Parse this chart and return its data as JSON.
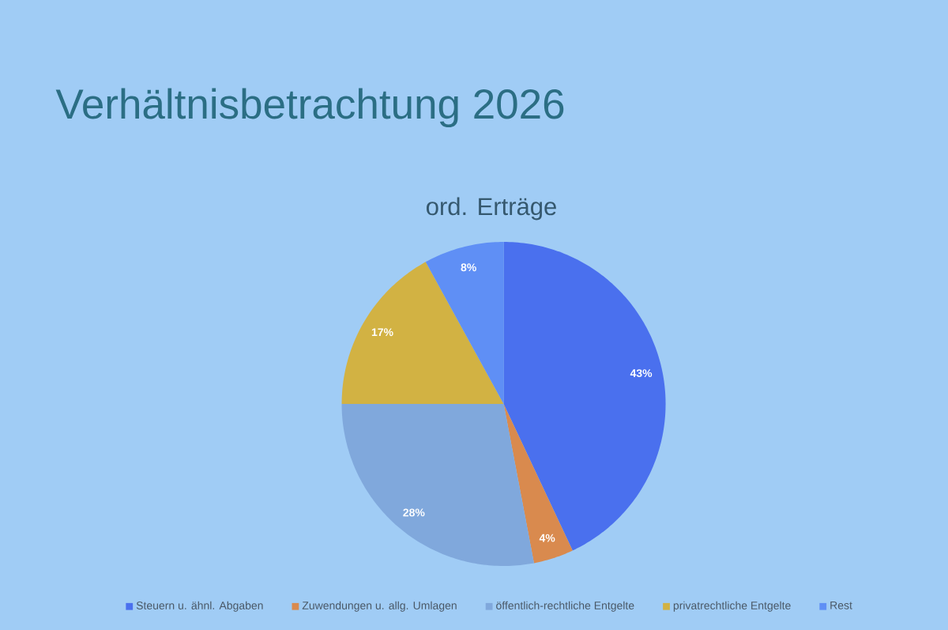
{
  "chart_data": {
    "type": "pie",
    "title": "Verhältnisbetrachtung 2026",
    "subtitle": "ord. Erträge",
    "categories": [
      "Steuern u. ähnl. Abgaben",
      "Zuwendungen u. allg. Umlagen",
      "öffentlich-rechtliche Entgelte",
      "privatrechtliche Entgelte",
      "Rest"
    ],
    "values": [
      43,
      4,
      28,
      17,
      8
    ],
    "colors": [
      "#4a70ee",
      "#d98a4e",
      "#80a8dc",
      "#d2b243",
      "#5f8ff5"
    ],
    "value_labels": [
      "43%",
      "4%",
      "28%",
      "17%",
      "8%"
    ],
    "legend": "bottom"
  }
}
